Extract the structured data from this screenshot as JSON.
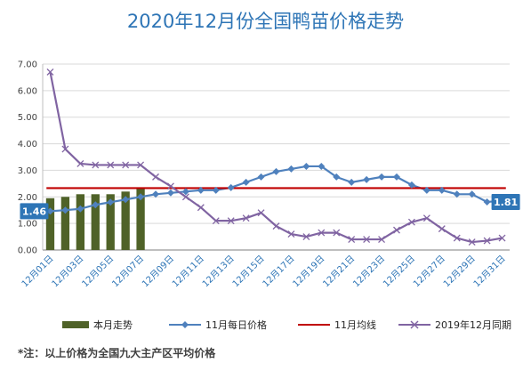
{
  "title": "2020年12月份全国鸭苗价格走势",
  "footnote": "*注：以上价格为全国九大主产区平均价格",
  "legend": {
    "bar": "本月走势",
    "nov_daily": "11月每日价格",
    "nov_avg": "11月均线",
    "dec_2019": "2019年12月同期"
  },
  "colors": {
    "bar": "#4f6228",
    "nov_daily": "#4f81bd",
    "nov_avg": "#c00000",
    "dec_2019": "#8064a2",
    "callout": "#2e75b6",
    "title": "#2e75b6"
  },
  "callouts": {
    "start": "1.46",
    "end": "1.81"
  },
  "chart_data": {
    "type": "bar+line",
    "title": "2020年12月份全国鸭苗价格走势",
    "ylim": [
      0,
      7
    ],
    "yticks": [
      "0.00",
      "1.00",
      "2.00",
      "3.00",
      "4.00",
      "5.00",
      "6.00",
      "7.00"
    ],
    "x": [
      "12月01日",
      "12月02日",
      "12月03日",
      "12月04日",
      "12月05日",
      "12月06日",
      "12月07日",
      "12月08日",
      "12月09日",
      "12月10日",
      "12月11日",
      "12月12日",
      "12月13日",
      "12月14日",
      "12月15日",
      "12月16日",
      "12月17日",
      "12月18日",
      "12月19日",
      "12月20日",
      "12月21日",
      "12月22日",
      "12月23日",
      "12月24日",
      "12月25日",
      "12月26日",
      "12月27日",
      "12月28日",
      "12月29日",
      "12月30日",
      "12月31日"
    ],
    "xtick_labels": [
      "12月01日",
      "12月03日",
      "12月05日",
      "12月07日",
      "12月09日",
      "12月11日",
      "12月13日",
      "12月15日",
      "12月17日",
      "12月19日",
      "12月21日",
      "12月23日",
      "12月25日",
      "12月27日",
      "12月29日",
      "12月31日"
    ],
    "series": [
      {
        "name": "本月走势",
        "kind": "bar",
        "values": [
          1.95,
          2.0,
          2.1,
          2.1,
          2.1,
          2.2,
          2.3,
          null,
          null,
          null,
          null,
          null,
          null,
          null,
          null,
          null,
          null,
          null,
          null,
          null,
          null,
          null,
          null,
          null,
          null,
          null,
          null,
          null,
          null,
          null,
          null
        ]
      },
      {
        "name": "11月每日价格",
        "kind": "line",
        "marker": "diamond",
        "values": [
          1.46,
          1.5,
          1.55,
          1.7,
          1.8,
          1.9,
          2.0,
          2.1,
          2.15,
          2.2,
          2.25,
          2.25,
          2.35,
          2.55,
          2.75,
          2.95,
          3.05,
          3.15,
          3.15,
          2.75,
          2.55,
          2.65,
          2.75,
          2.75,
          2.45,
          2.25,
          2.25,
          2.1,
          2.1,
          1.81,
          1.85
        ]
      },
      {
        "name": "11月均线",
        "kind": "line",
        "marker": "none",
        "values": [
          2.33,
          2.33,
          2.33,
          2.33,
          2.33,
          2.33,
          2.33,
          2.33,
          2.33,
          2.33,
          2.33,
          2.33,
          2.33,
          2.33,
          2.33,
          2.33,
          2.33,
          2.33,
          2.33,
          2.33,
          2.33,
          2.33,
          2.33,
          2.33,
          2.33,
          2.33,
          2.33,
          2.33,
          2.33,
          2.33,
          2.33
        ]
      },
      {
        "name": "2019年12月同期",
        "kind": "line",
        "marker": "x",
        "values": [
          6.7,
          3.8,
          3.25,
          3.2,
          3.2,
          3.2,
          3.2,
          2.75,
          2.4,
          2.0,
          1.6,
          1.1,
          1.1,
          1.2,
          1.4,
          0.9,
          0.6,
          0.5,
          0.65,
          0.65,
          0.4,
          0.4,
          0.4,
          0.75,
          1.05,
          1.2,
          0.8,
          0.45,
          0.3,
          0.35,
          0.45
        ]
      }
    ]
  }
}
